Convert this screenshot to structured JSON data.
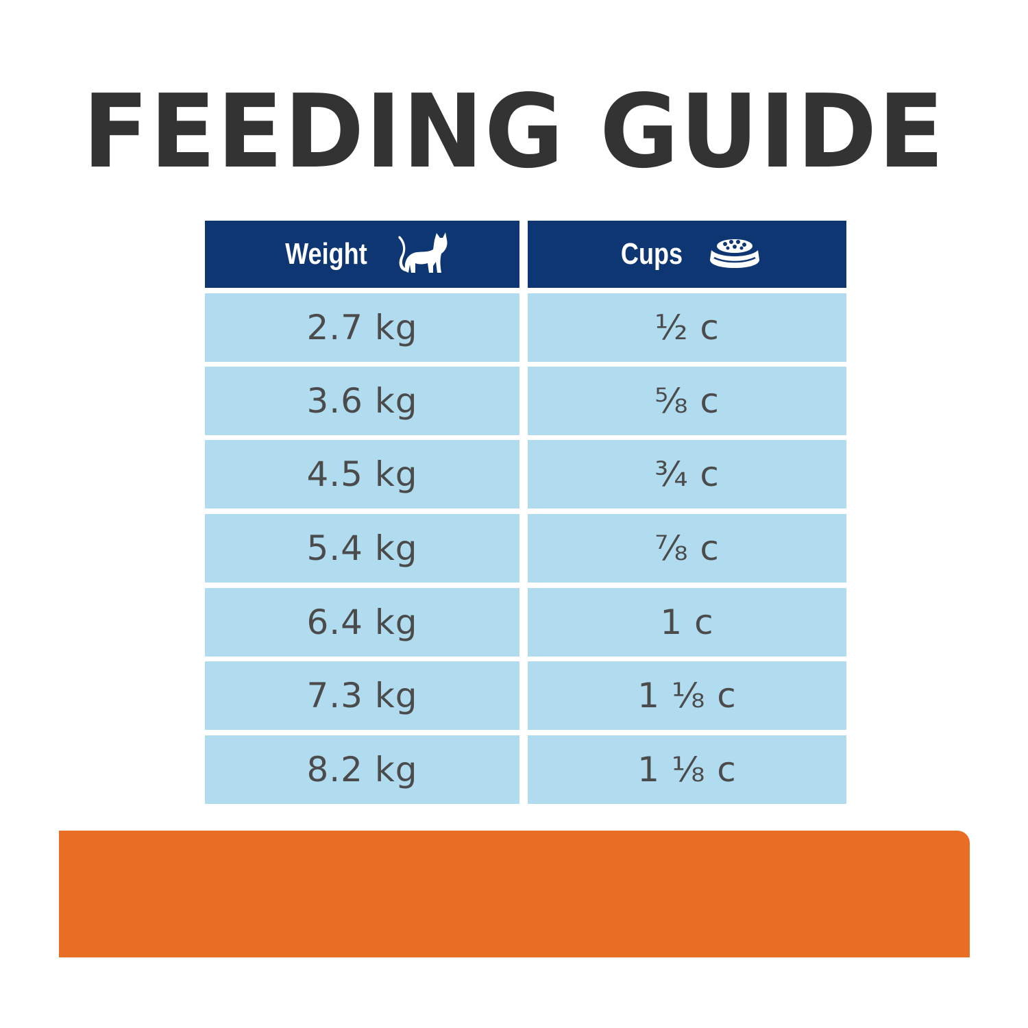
{
  "title": "FEEDING GUIDE",
  "table": {
    "headers": {
      "weight": "Weight",
      "cups": "Cups"
    },
    "icons": {
      "weight": "cat-icon",
      "cups": "food-bowl-icon"
    },
    "rows": [
      {
        "weight": "2.7 kg",
        "cups": "½ c"
      },
      {
        "weight": "3.6 kg",
        "cups": "⅝ c"
      },
      {
        "weight": "4.5 kg",
        "cups": "¾ c"
      },
      {
        "weight": "5.4 kg",
        "cups": "⅞ c"
      },
      {
        "weight": "6.4 kg",
        "cups": "1 c"
      },
      {
        "weight": "7.3 kg",
        "cups": "1 ⅛ c"
      },
      {
        "weight": "8.2 kg",
        "cups": "1 ⅛ c"
      }
    ]
  },
  "colors": {
    "header_bg": "#0d3672",
    "row_bg": "#b1dcf0",
    "title_text": "#333333",
    "cell_text": "#4b4b4b",
    "accent_bar": "#e86e25"
  }
}
